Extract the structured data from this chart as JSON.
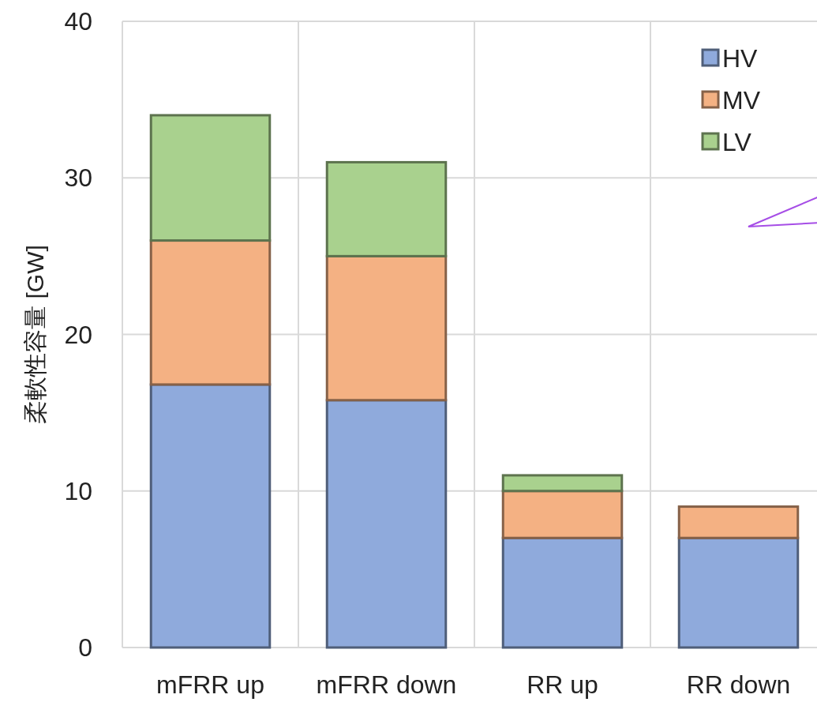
{
  "chart_data": {
    "type": "bar",
    "ylabel": "柔軟性容量 [GW]",
    "categories": [
      "mFRR up",
      "mFRR down",
      "RR up",
      "RR down"
    ],
    "stacked": true,
    "ylim": [
      0,
      40
    ],
    "yticks": [
      0,
      10,
      20,
      30,
      40
    ],
    "grid": true,
    "legend": "top right",
    "series": [
      {
        "name": "HV",
        "color": "#8faadc",
        "values": [
          16.8,
          15.8,
          7,
          7
        ]
      },
      {
        "name": "MV",
        "color": "#f4b183",
        "values": [
          9.2,
          9.2,
          3,
          2
        ]
      },
      {
        "name": "LV",
        "color": "#a9d18e",
        "values": [
          8,
          6,
          1,
          0
        ]
      }
    ]
  }
}
